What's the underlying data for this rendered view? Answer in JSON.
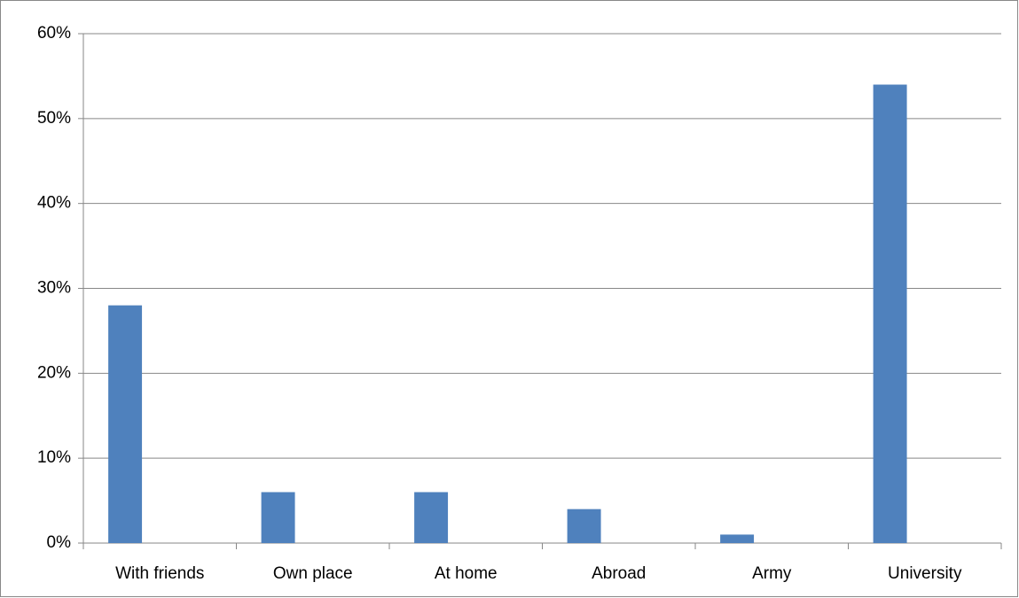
{
  "chart_data": {
    "type": "bar",
    "categories": [
      "With friends",
      "Own place",
      "At home",
      "Abroad",
      "Army",
      "University"
    ],
    "values": [
      28,
      6,
      6,
      4,
      1,
      54
    ],
    "color": "#4f81bd",
    "ylim": [
      0,
      60
    ],
    "yticks": [
      {
        "value": 0,
        "label": "0%"
      },
      {
        "value": 10,
        "label": "10%"
      },
      {
        "value": 20,
        "label": "20%"
      },
      {
        "value": 30,
        "label": "30%"
      },
      {
        "value": 40,
        "label": "40%"
      },
      {
        "value": 50,
        "label": "50%"
      },
      {
        "value": 60,
        "label": "60%"
      }
    ],
    "grid": true
  }
}
